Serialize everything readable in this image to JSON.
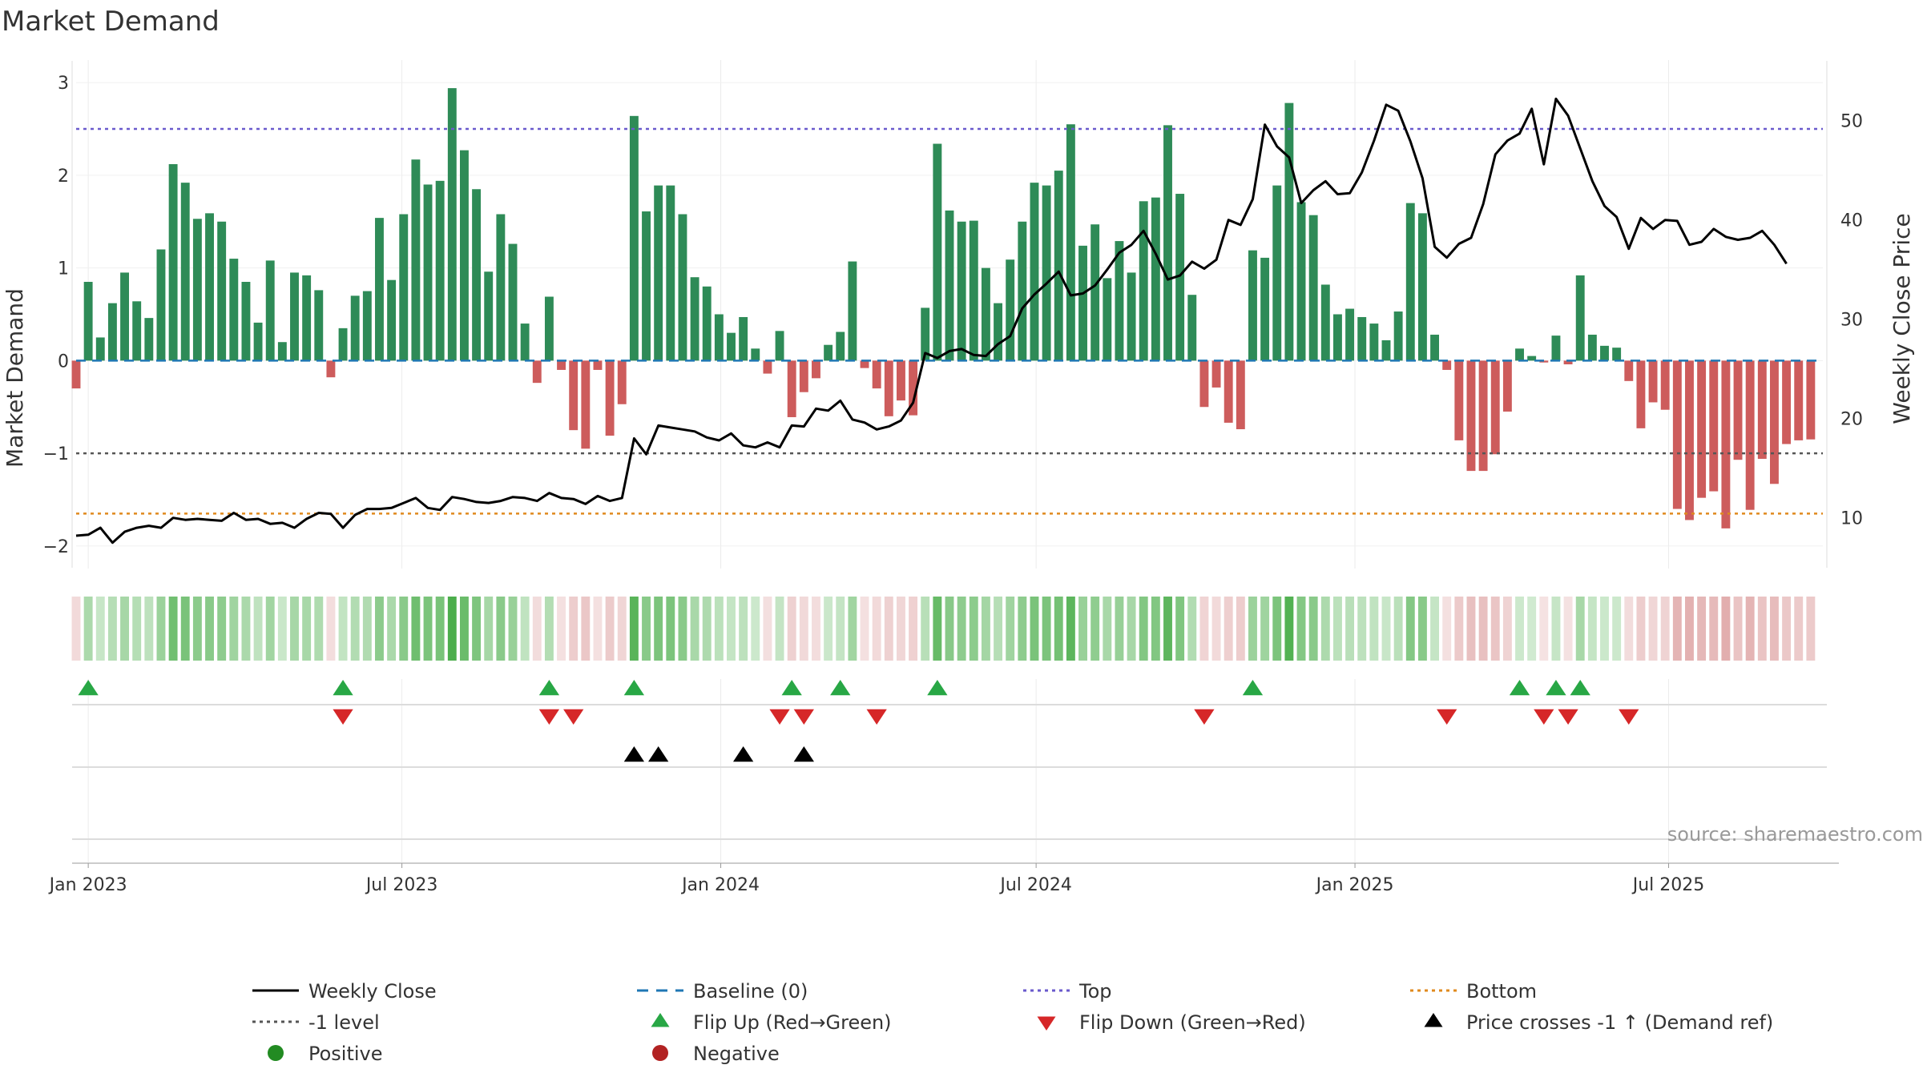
{
  "chart_data": {
    "type": "bar",
    "title": "Market Demand",
    "ylabel": "Market Demand",
    "y2label": "Weekly Close Price",
    "ylim": [
      -2.2,
      3.2
    ],
    "y2lim": [
      5.3,
      55.7
    ],
    "yticks": [
      "3",
      "2",
      "1",
      "0",
      "−1",
      "−2"
    ],
    "y2ticks": [
      "50",
      "40",
      "30",
      "20",
      "10"
    ],
    "x_start": "2022-12-25",
    "x_end": "2025-09-28",
    "xtick_dates": [
      "2023-01-01",
      "2023-07-01",
      "2024-01-01",
      "2024-07-01",
      "2025-01-01",
      "2025-07-01"
    ],
    "xtick_labels": [
      "Jan 2023",
      "Jul 2023",
      "Jan 2024",
      "Jul 2024",
      "Jan 2025",
      "Jul 2025"
    ],
    "week_start": "2022-12-25",
    "demand": [
      -0.3,
      0.85,
      0.25,
      0.62,
      0.95,
      0.64,
      0.46,
      1.2,
      2.12,
      1.92,
      1.53,
      1.59,
      1.5,
      1.1,
      0.85,
      0.41,
      1.08,
      0.2,
      0.95,
      0.92,
      0.76,
      -0.18,
      0.35,
      0.7,
      0.75,
      1.54,
      0.87,
      1.58,
      2.17,
      1.9,
      1.94,
      2.94,
      2.27,
      1.85,
      0.96,
      1.58,
      1.26,
      0.4,
      -0.24,
      0.69,
      -0.1,
      -0.75,
      -0.95,
      -0.1,
      -0.81,
      -0.47,
      2.64,
      1.61,
      1.89,
      1.89,
      1.58,
      0.9,
      0.8,
      0.5,
      0.3,
      0.47,
      0.13,
      -0.14,
      0.32,
      -0.61,
      -0.34,
      -0.19,
      0.17,
      0.31,
      1.07,
      -0.08,
      -0.3,
      -0.6,
      -0.43,
      -0.59,
      0.57,
      2.34,
      1.62,
      1.5,
      1.51,
      1.0,
      0.62,
      1.09,
      1.5,
      1.92,
      1.89,
      2.05,
      2.55,
      1.24,
      1.47,
      0.89,
      1.29,
      0.95,
      1.72,
      1.76,
      2.54,
      1.8,
      0.71,
      -0.5,
      -0.29,
      -0.67,
      -0.74,
      1.19,
      1.11,
      1.89,
      2.78,
      1.71,
      1.57,
      0.82,
      0.5,
      0.56,
      0.47,
      0.4,
      0.22,
      0.53,
      1.7,
      1.59,
      0.28,
      -0.1,
      -0.86,
      -1.19,
      -1.19,
      -1.01,
      -0.55,
      0.13,
      0.05,
      -0.02,
      0.27,
      -0.04,
      0.92,
      0.28,
      0.16,
      0.14,
      -0.22,
      -0.73,
      -0.45,
      -0.53,
      -1.6,
      -1.72,
      -1.48,
      -1.41,
      -1.81,
      -1.07,
      -1.61,
      -1.06,
      -1.33,
      -0.9,
      -0.86,
      -0.85
    ],
    "close": [
      8.2,
      8.3,
      9.0,
      7.5,
      8.6,
      9.0,
      9.2,
      9.0,
      10.0,
      9.8,
      9.9,
      9.8,
      9.7,
      10.5,
      9.8,
      9.9,
      9.4,
      9.5,
      9.0,
      9.9,
      10.5,
      10.4,
      9.0,
      10.3,
      10.9,
      10.9,
      11.0,
      11.5,
      12.0,
      11.0,
      10.8,
      12.1,
      11.9,
      11.6,
      11.5,
      11.7,
      12.1,
      12.0,
      11.7,
      12.5,
      12.0,
      11.9,
      11.4,
      12.2,
      11.7,
      12.0,
      18.0,
      16.4,
      19.3,
      19.1,
      18.9,
      18.7,
      18.1,
      17.8,
      18.5,
      17.3,
      17.1,
      17.6,
      17.1,
      19.3,
      19.2,
      21.0,
      20.8,
      21.8,
      19.9,
      19.6,
      18.9,
      19.2,
      19.8,
      21.6,
      26.6,
      26.1,
      26.8,
      27.0,
      26.4,
      26.3,
      27.5,
      28.3,
      31.1,
      32.5,
      33.6,
      34.8,
      32.4,
      32.6,
      33.4,
      35.0,
      36.7,
      37.5,
      38.9,
      36.6,
      34.0,
      34.4,
      35.8,
      35.1,
      36.0,
      40.0,
      39.5,
      42.1,
      49.6,
      47.4,
      46.3,
      41.7,
      43.0,
      43.9,
      42.6,
      42.7,
      44.8,
      48.0,
      51.6,
      51.0,
      47.9,
      44.2,
      37.3,
      36.2,
      37.6,
      38.2,
      41.6,
      46.6,
      48.0,
      48.7,
      51.2,
      45.6,
      52.2,
      50.5,
      47.2,
      43.9,
      41.4,
      40.3,
      37.1,
      40.2,
      39.1,
      40.0,
      39.9,
      37.5,
      37.8,
      39.1,
      38.3,
      38.0,
      38.2,
      38.9,
      37.5,
      35.6
    ],
    "levels": {
      "top": 2.5,
      "minus1": -1.0,
      "bottom": -1.65
    },
    "flip_up_weeks": [
      1,
      22,
      39,
      46,
      59,
      63,
      71,
      97,
      119,
      122,
      124
    ],
    "flip_down_weeks": [
      22,
      39,
      41,
      58,
      60,
      66,
      93,
      113,
      121,
      123,
      128
    ],
    "price_cross_weeks": [
      46,
      48,
      55,
      60
    ],
    "colors": {
      "positive": "#2e8b57",
      "negative": "#cd5c5c",
      "close": "#000000",
      "baseline": "#1f77b4",
      "top": "#6a5acd",
      "minus1": "#555555",
      "bottom": "#e08a1e",
      "flip_up": "#28a745",
      "flip_down": "#d62728",
      "cross": "#000000"
    },
    "legend": [
      {
        "label": "Weekly Close",
        "marker": "line-solid",
        "color": "#000000"
      },
      {
        "label": "Baseline (0)",
        "marker": "line-dash",
        "color": "#1f77b4"
      },
      {
        "label": "Top",
        "marker": "line-dot",
        "color": "#6a5acd"
      },
      {
        "label": "Bottom",
        "marker": "line-dot",
        "color": "#e08a1e"
      },
      {
        "label": "-1 level",
        "marker": "line-dot",
        "color": "#555555"
      },
      {
        "label": "Flip Up (Red→Green)",
        "marker": "triangle-up",
        "color": "#28a745"
      },
      {
        "label": "Flip Down (Green→Red)",
        "marker": "triangle-down",
        "color": "#d62728"
      },
      {
        "label": "Price crosses -1 ↑ (Demand ref)",
        "marker": "triangle-up",
        "color": "#000000"
      },
      {
        "label": "Positive",
        "marker": "circle",
        "color": "#228b22"
      },
      {
        "label": "Negative",
        "marker": "circle",
        "color": "#b22222"
      }
    ],
    "legend_placement": "bottom",
    "grid": true
  },
  "source_text": "source: sharemaestro.com"
}
